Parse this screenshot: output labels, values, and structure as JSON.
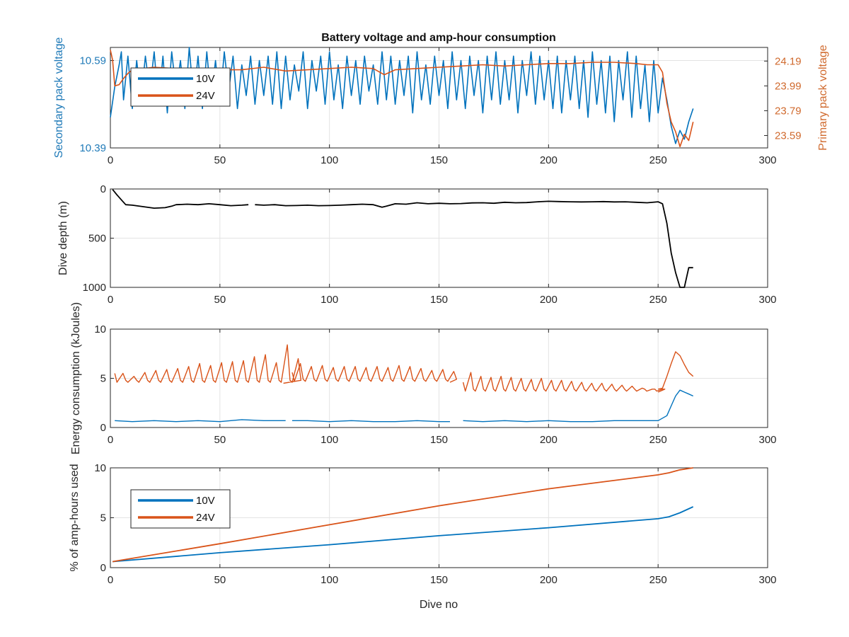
{
  "colors": {
    "series_10v": "#0072BD",
    "series_24v": "#D95319",
    "series_depth": "#000000",
    "axis": "#262626",
    "grid": "#e3e3e3"
  },
  "chart_data": [
    {
      "id": "voltage",
      "type": "line",
      "title": "Battery voltage and amp-hour consumption",
      "xlabel": "",
      "ylabel_left": "Secondary pack voltage",
      "ylabel_right": "Primary pack voltage",
      "xlim": [
        0,
        300
      ],
      "xticks": [
        0,
        50,
        100,
        150,
        200,
        250,
        300
      ],
      "ylim_left": [
        10.39,
        10.62
      ],
      "yticks_left": [
        10.39,
        10.59
      ],
      "ylim_right": [
        23.49,
        24.3
      ],
      "yticks_right": [
        23.59,
        23.79,
        23.99,
        24.19
      ],
      "grid": true,
      "legend": {
        "placement": "top-left",
        "entries": [
          "10V",
          "24V"
        ]
      },
      "series": [
        {
          "name": "10V",
          "axis": "left",
          "x": [
            0,
            2,
            4,
            5,
            6,
            8,
            10,
            12,
            14,
            16,
            18,
            20,
            22,
            24,
            26,
            28,
            30,
            32,
            34,
            36,
            38,
            40,
            42,
            44,
            46,
            48,
            50,
            52,
            54,
            56,
            58,
            60,
            62,
            64,
            66,
            68,
            70,
            72,
            74,
            76,
            78,
            80,
            82,
            84,
            86,
            88,
            90,
            92,
            94,
            96,
            98,
            100,
            102,
            104,
            106,
            108,
            110,
            112,
            114,
            116,
            118,
            120,
            122,
            124,
            126,
            128,
            130,
            132,
            134,
            136,
            138,
            140,
            142,
            144,
            146,
            148,
            150,
            152,
            154,
            156,
            158,
            160,
            162,
            164,
            166,
            168,
            170,
            172,
            174,
            176,
            178,
            180,
            182,
            184,
            186,
            188,
            190,
            192,
            194,
            196,
            198,
            200,
            202,
            204,
            206,
            208,
            210,
            212,
            214,
            216,
            218,
            220,
            222,
            224,
            226,
            228,
            230,
            232,
            234,
            236,
            238,
            240,
            242,
            244,
            246,
            248,
            250,
            252,
            254,
            256,
            258,
            260,
            262,
            264,
            266
          ],
          "values": [
            10.46,
            10.53,
            10.58,
            10.61,
            10.5,
            10.6,
            10.48,
            10.59,
            10.5,
            10.6,
            10.52,
            10.61,
            10.49,
            10.6,
            10.47,
            10.61,
            10.52,
            10.59,
            10.48,
            10.62,
            10.5,
            10.6,
            10.48,
            10.61,
            10.5,
            10.59,
            10.49,
            10.61,
            10.52,
            10.6,
            10.48,
            10.58,
            10.51,
            10.6,
            10.49,
            10.59,
            10.51,
            10.6,
            10.49,
            10.61,
            10.48,
            10.6,
            10.5,
            10.58,
            10.52,
            10.61,
            10.48,
            10.59,
            10.52,
            10.6,
            10.49,
            10.61,
            10.5,
            10.58,
            10.48,
            10.6,
            10.51,
            10.59,
            10.49,
            10.6,
            10.52,
            10.58,
            10.49,
            10.61,
            10.5,
            10.6,
            10.49,
            10.59,
            10.51,
            10.6,
            10.47,
            10.61,
            10.5,
            10.58,
            10.49,
            10.6,
            10.51,
            10.59,
            10.48,
            10.61,
            10.5,
            10.59,
            10.48,
            10.6,
            10.51,
            10.59,
            10.47,
            10.6,
            10.5,
            10.61,
            10.49,
            10.59,
            10.5,
            10.6,
            10.47,
            10.59,
            10.51,
            10.61,
            10.49,
            10.6,
            10.5,
            10.59,
            10.48,
            10.6,
            10.47,
            10.59,
            10.5,
            10.6,
            10.48,
            10.59,
            10.46,
            10.61,
            10.49,
            10.59,
            10.47,
            10.6,
            10.45,
            10.59,
            10.5,
            10.61,
            10.46,
            10.6,
            10.48,
            10.58,
            10.45,
            10.59,
            10.47,
            10.55,
            10.5,
            10.44,
            10.4,
            10.43,
            10.41,
            10.45,
            10.48
          ]
        },
        {
          "name": "24V",
          "axis": "right",
          "x": [
            0,
            1,
            2,
            4,
            6,
            8,
            10,
            15,
            20,
            30,
            40,
            50,
            60,
            70,
            80,
            90,
            100,
            110,
            120,
            125,
            130,
            140,
            150,
            160,
            170,
            180,
            190,
            200,
            210,
            220,
            230,
            240,
            245,
            250,
            252,
            254,
            256,
            258,
            260,
            262,
            264,
            266
          ],
          "values": [
            24.28,
            24.2,
            23.99,
            24.0,
            24.05,
            24.09,
            24.12,
            24.13,
            24.14,
            24.13,
            24.12,
            24.12,
            24.12,
            24.14,
            24.11,
            24.12,
            24.13,
            24.14,
            24.13,
            24.08,
            24.12,
            24.13,
            24.14,
            24.15,
            24.16,
            24.15,
            24.16,
            24.17,
            24.17,
            24.18,
            24.18,
            24.17,
            24.16,
            24.16,
            24.1,
            23.85,
            23.7,
            23.62,
            23.5,
            23.6,
            23.55,
            23.7
          ]
        }
      ]
    },
    {
      "id": "depth",
      "type": "line",
      "title": "",
      "xlabel": "",
      "ylabel": "Dive depth (m)",
      "xlim": [
        0,
        300
      ],
      "xticks": [
        0,
        50,
        100,
        150,
        200,
        250,
        300
      ],
      "ylim": [
        0,
        1000
      ],
      "yticks": [
        0,
        500,
        1000
      ],
      "yreversed": true,
      "grid": true,
      "series": [
        {
          "name": "",
          "segments": [
            {
              "x": [
                1,
                3,
                5,
                7,
                10,
                15,
                20,
                25,
                28,
                30,
                35,
                40,
                45,
                50,
                55,
                60,
                63
              ],
              "values": [
                5,
                60,
                110,
                160,
                165,
                180,
                195,
                190,
                175,
                160,
                155,
                160,
                150,
                160,
                170,
                165,
                160
              ]
            },
            {
              "x": [
                66,
                70,
                75,
                80,
                85,
                90,
                95,
                100,
                105,
                110,
                115,
                120,
                124,
                126,
                130,
                135,
                140,
                145,
                150,
                155,
                160,
                165,
                170,
                175,
                180,
                185,
                190,
                195,
                200,
                205,
                210,
                215,
                220,
                225,
                230,
                235,
                240,
                245,
                250,
                252,
                254,
                256,
                258,
                260,
                262,
                264,
                266
              ],
              "values": [
                160,
                165,
                160,
                170,
                168,
                165,
                170,
                168,
                165,
                160,
                155,
                160,
                185,
                175,
                150,
                155,
                140,
                150,
                145,
                150,
                148,
                142,
                140,
                145,
                135,
                140,
                138,
                130,
                125,
                128,
                130,
                132,
                130,
                128,
                132,
                130,
                135,
                140,
                130,
                150,
                350,
                650,
                850,
                1000,
                1000,
                800,
                800
              ]
            }
          ]
        }
      ]
    },
    {
      "id": "energy",
      "type": "line",
      "title": "",
      "xlabel": "",
      "ylabel": "Energy consumption (kJoules)",
      "xlim": [
        0,
        300
      ],
      "xticks": [
        0,
        50,
        100,
        150,
        200,
        250,
        300
      ],
      "ylim": [
        0,
        10
      ],
      "yticks": [
        0,
        5,
        10
      ],
      "grid": true,
      "series": [
        {
          "name": "10V",
          "segments": [
            {
              "x": [
                2,
                10,
                20,
                30,
                40,
                50,
                60,
                70,
                80
              ],
              "values": [
                0.7,
                0.6,
                0.7,
                0.6,
                0.7,
                0.6,
                0.8,
                0.7,
                0.7
              ]
            },
            {
              "x": [
                83,
                90,
                100,
                110,
                120,
                130,
                140,
                150,
                155
              ],
              "values": [
                0.7,
                0.7,
                0.6,
                0.7,
                0.6,
                0.6,
                0.7,
                0.6,
                0.6
              ]
            },
            {
              "x": [
                161,
                170,
                180,
                190,
                200,
                210,
                220,
                230,
                240,
                250,
                254,
                256,
                258,
                260,
                262,
                264,
                266
              ],
              "values": [
                0.7,
                0.6,
                0.7,
                0.6,
                0.7,
                0.6,
                0.6,
                0.7,
                0.7,
                0.7,
                1.2,
                2.2,
                3.2,
                3.8,
                3.6,
                3.4,
                3.2
              ]
            }
          ]
        },
        {
          "name": "24V",
          "spikes": [
            {
              "start": 2,
              "end": 79,
              "baseline": 4.3,
              "period": 5,
              "peaks": [
                5.5,
                5.2,
                5.6,
                5.8,
                5.9,
                6.0,
                6.2,
                6.5,
                6.3,
                6.6,
                6.7,
                6.8,
                7.2,
                7.4,
                6.6,
                8.4,
                7.0
              ]
            },
            {
              "start": 83,
              "end": 155,
              "baseline": 4.4,
              "period": 5,
              "peaks": [
                6.5,
                6.2,
                6.3,
                6.1,
                6.2,
                6.2,
                6.1,
                6.2,
                6.1,
                6.3,
                6.2,
                6.0,
                5.8,
                5.9,
                5.7
              ]
            },
            {
              "start": 161,
              "end": 250,
              "baseline": 3.4,
              "period": 4.6,
              "peaks": [
                5.6,
                5.2,
                5.1,
                5.2,
                5.1,
                5.0,
                4.9,
                5.0,
                4.8,
                4.8,
                4.7,
                4.6,
                4.5,
                4.5,
                4.4,
                4.3,
                4.2,
                4.0,
                3.9,
                3.9
              ]
            }
          ],
          "tail": {
            "x": [
              250,
              252,
              254,
              256,
              258,
              260,
              262,
              264,
              266
            ],
            "values": [
              3.9,
              4.0,
              5.2,
              6.5,
              7.7,
              7.3,
              6.4,
              5.6,
              5.2
            ]
          }
        }
      ]
    },
    {
      "id": "amphours",
      "type": "line",
      "title": "",
      "xlabel": "Dive no",
      "ylabel": "% of amp-hours used",
      "xlim": [
        0,
        300
      ],
      "xticks": [
        0,
        50,
        100,
        150,
        200,
        250,
        300
      ],
      "ylim": [
        0,
        10
      ],
      "yticks": [
        0,
        5,
        10
      ],
      "grid": true,
      "legend": {
        "placement": "top-left",
        "entries": [
          "10V",
          "24V"
        ]
      },
      "series": [
        {
          "name": "10V",
          "x": [
            1,
            50,
            100,
            150,
            200,
            250,
            255,
            260,
            266
          ],
          "values": [
            0.6,
            1.5,
            2.3,
            3.2,
            4.0,
            4.9,
            5.1,
            5.5,
            6.1
          ]
        },
        {
          "name": "24V",
          "x": [
            1,
            50,
            100,
            150,
            200,
            250,
            255,
            260,
            266
          ],
          "values": [
            0.6,
            2.4,
            4.3,
            6.2,
            7.9,
            9.3,
            9.5,
            9.8,
            10.0
          ]
        }
      ]
    }
  ]
}
